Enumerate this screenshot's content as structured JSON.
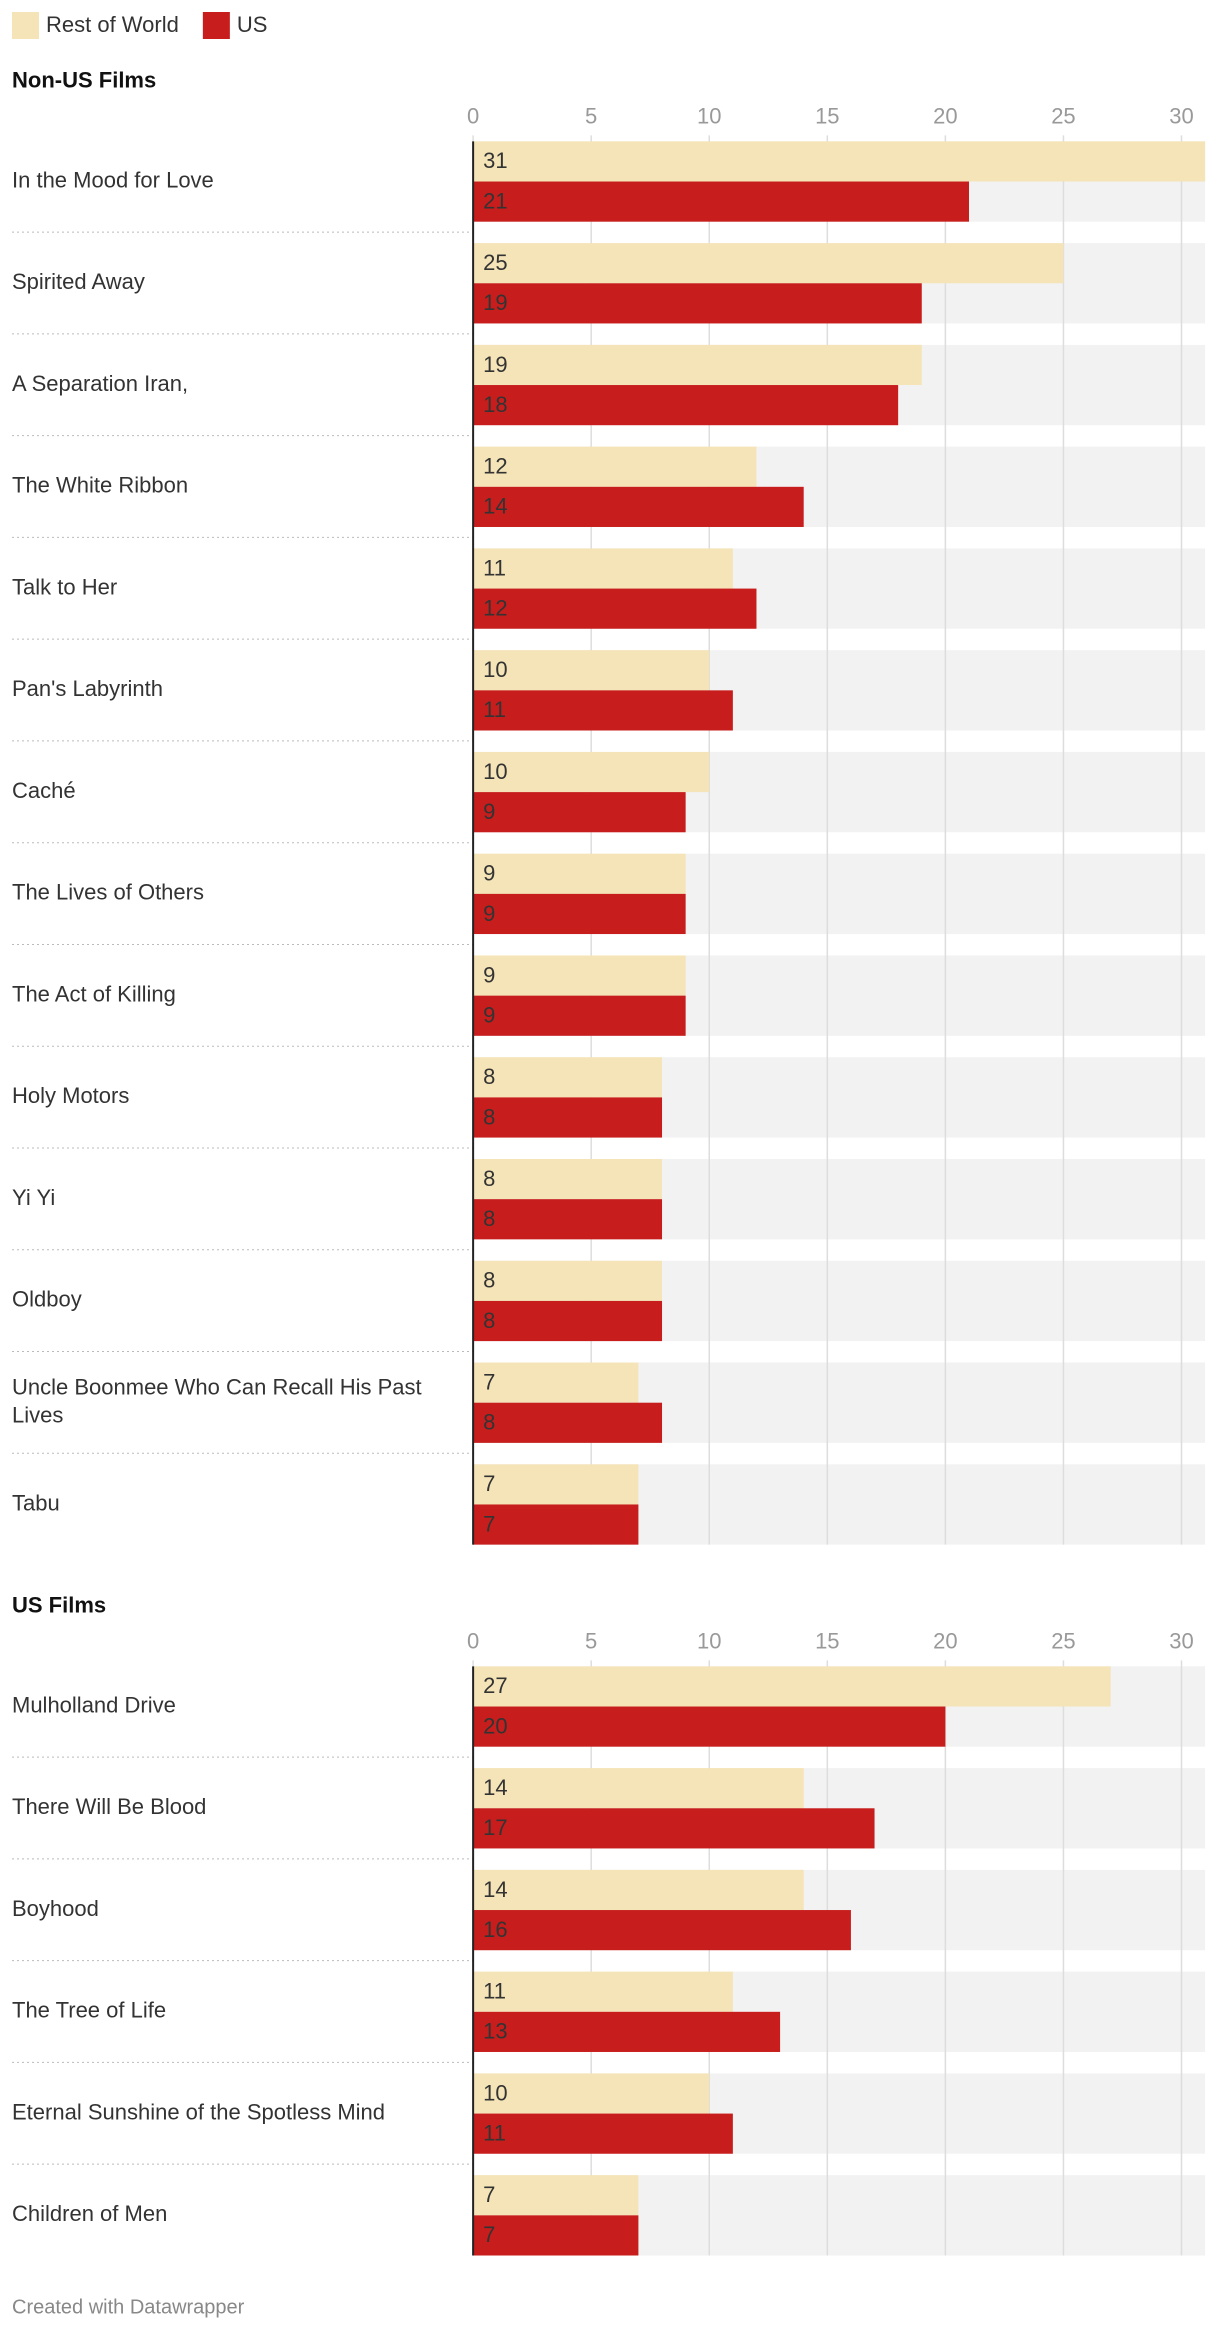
{
  "chart_data": [
    {
      "type": "bar",
      "title": "Non-US Films",
      "categories": [
        "In the Mood for Love",
        "Spirited Away",
        "A Separation Iran,",
        "The White Ribbon",
        "Talk to Her",
        "Pan's Labyrinth",
        "Caché",
        "The Lives of Others",
        "The Act of Killing",
        "Holy Motors",
        "Yi Yi",
        "Oldboy",
        "Uncle Boonmee Who Can Recall His Past Lives",
        "Tabu"
      ],
      "series": [
        {
          "name": "Rest of World",
          "color": "#f5e4b7",
          "values": [
            31,
            25,
            19,
            12,
            11,
            10,
            10,
            9,
            9,
            8,
            8,
            8,
            7,
            7
          ]
        },
        {
          "name": "US",
          "color": "#c71e1d",
          "values": [
            21,
            19,
            18,
            14,
            12,
            11,
            9,
            9,
            9,
            8,
            8,
            8,
            8,
            7
          ]
        }
      ],
      "xlim": [
        0,
        31
      ],
      "xticks": [
        0,
        5,
        10,
        15,
        20,
        25,
        30
      ],
      "grid": true
    },
    {
      "type": "bar",
      "title": "US Films",
      "categories": [
        "Mulholland Drive",
        "There Will Be Blood",
        "Boyhood",
        "The Tree of Life",
        "Eternal Sunshine of the Spotless Mind",
        "Children of Men"
      ],
      "series": [
        {
          "name": "Rest of World",
          "color": "#f5e4b7",
          "values": [
            27,
            14,
            14,
            11,
            10,
            7
          ]
        },
        {
          "name": "US",
          "color": "#c71e1d",
          "values": [
            20,
            17,
            16,
            13,
            11,
            7
          ]
        }
      ],
      "xlim": [
        0,
        31
      ],
      "xticks": [
        0,
        5,
        10,
        15,
        20,
        25,
        30
      ],
      "grid": true
    }
  ],
  "footer": "Created with Datawrapper"
}
